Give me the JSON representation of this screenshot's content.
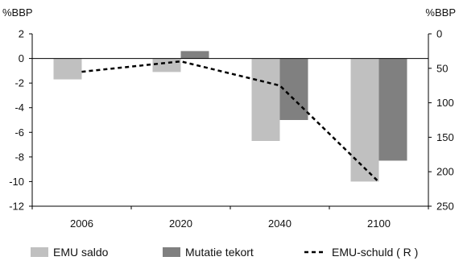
{
  "chart_data": {
    "type": "bar",
    "categories": [
      "2006",
      "2020",
      "2040",
      "2100"
    ],
    "series": [
      {
        "name": "EMU saldo",
        "type": "bar",
        "axis": "left",
        "color": "#c0c0c0",
        "values": [
          -1.7,
          -1.1,
          -6.7,
          -10.0
        ]
      },
      {
        "name": "Mutatie tekort",
        "type": "bar",
        "axis": "left",
        "color": "#808080",
        "values": [
          null,
          0.6,
          -5.0,
          -8.3
        ]
      },
      {
        "name": "EMU-schuld ( R )",
        "type": "line",
        "axis": "right",
        "style": "dashed",
        "color": "#000000",
        "values": [
          55,
          40,
          75,
          215
        ]
      }
    ],
    "left_axis": {
      "unit_label": "%BBP",
      "ylim": [
        -12,
        2
      ],
      "ticks": [
        "2",
        "0",
        "-2",
        "-4",
        "-6",
        "-8",
        "-10",
        "-12"
      ]
    },
    "right_axis": {
      "unit_label": "%BBP",
      "ylim": [
        0,
        250
      ],
      "inverted": true,
      "ticks": [
        "0",
        "50",
        "100",
        "150",
        "200",
        "250"
      ]
    },
    "legend_position": "bottom"
  }
}
